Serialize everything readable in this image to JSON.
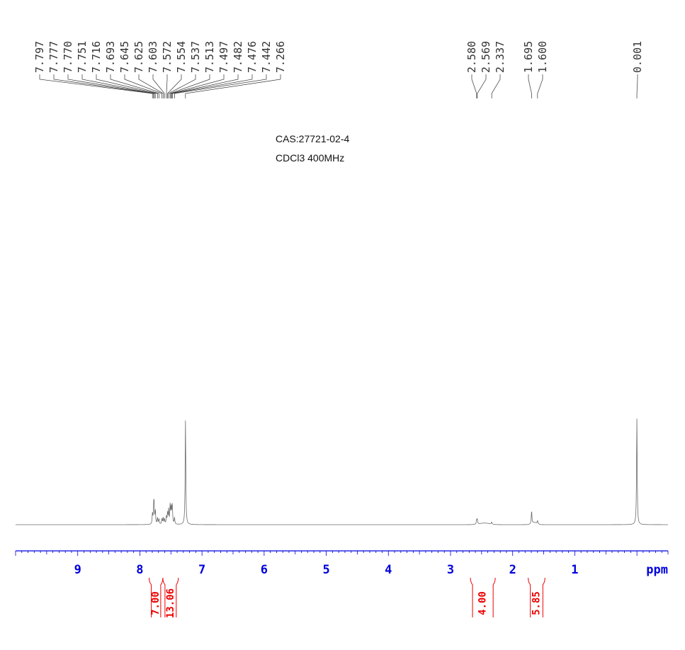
{
  "notes": {
    "cas": "CAS:27721-02-4",
    "conditions": "CDCl3 400MHz"
  },
  "chart_data": {
    "type": "line",
    "xlabel": "ppm",
    "xlim": [
      10.0,
      -0.5
    ],
    "x_ticks": [
      9,
      8,
      7,
      6,
      5,
      4,
      3,
      2,
      1
    ],
    "x_reversed": true,
    "grid": false,
    "peak_label_groups": [
      {
        "labels": [
          "7.797",
          "7.777",
          "7.770",
          "7.751",
          "7.716",
          "7.693",
          "7.645",
          "7.625",
          "7.603",
          "7.572",
          "7.554",
          "7.537",
          "7.513",
          "7.497",
          "7.482",
          "7.476",
          "7.442",
          "7.266"
        ]
      },
      {
        "labels": [
          "2.580",
          "2.569",
          "2.337"
        ]
      },
      {
        "labels": [
          "1.695",
          "1.600"
        ]
      },
      {
        "labels": [
          "0.001"
        ]
      }
    ],
    "peaks": [
      {
        "ppm": 7.797,
        "height": 0.1
      },
      {
        "ppm": 7.777,
        "height": 0.16
      },
      {
        "ppm": 7.77,
        "height": 0.14
      },
      {
        "ppm": 7.751,
        "height": 0.12
      },
      {
        "ppm": 7.716,
        "height": 0.06
      },
      {
        "ppm": 7.693,
        "height": 0.05
      },
      {
        "ppm": 7.645,
        "height": 0.05
      },
      {
        "ppm": 7.625,
        "height": 0.06
      },
      {
        "ppm": 7.603,
        "height": 0.05
      },
      {
        "ppm": 7.572,
        "height": 0.07
      },
      {
        "ppm": 7.554,
        "height": 0.1
      },
      {
        "ppm": 7.537,
        "height": 0.13
      },
      {
        "ppm": 7.513,
        "height": 0.17
      },
      {
        "ppm": 7.497,
        "height": 0.14
      },
      {
        "ppm": 7.482,
        "height": 0.12
      },
      {
        "ppm": 7.476,
        "height": 0.1
      },
      {
        "ppm": 7.442,
        "height": 0.06
      },
      {
        "ppm": 7.266,
        "height": 0.98
      },
      {
        "ppm": 2.58,
        "height": 0.04
      },
      {
        "ppm": 2.569,
        "height": 0.04
      },
      {
        "ppm": 2.337,
        "height": 0.02
      },
      {
        "ppm": 1.695,
        "height": 0.12
      },
      {
        "ppm": 1.6,
        "height": 0.03
      },
      {
        "ppm": 0.001,
        "height": 1.0
      }
    ],
    "integrals": [
      {
        "value": "7.00",
        "from": 7.85,
        "to": 7.63
      },
      {
        "value": "13.06",
        "from": 7.63,
        "to": 7.38
      },
      {
        "value": "4.00",
        "from": 2.68,
        "to": 2.28
      },
      {
        "value": "5.85",
        "from": 1.75,
        "to": 1.48
      }
    ],
    "colors": {
      "spectrum": "#6b6b6b",
      "axis": "#0000dd",
      "integral": "#ee0000",
      "peak_labels": "#333333"
    }
  }
}
